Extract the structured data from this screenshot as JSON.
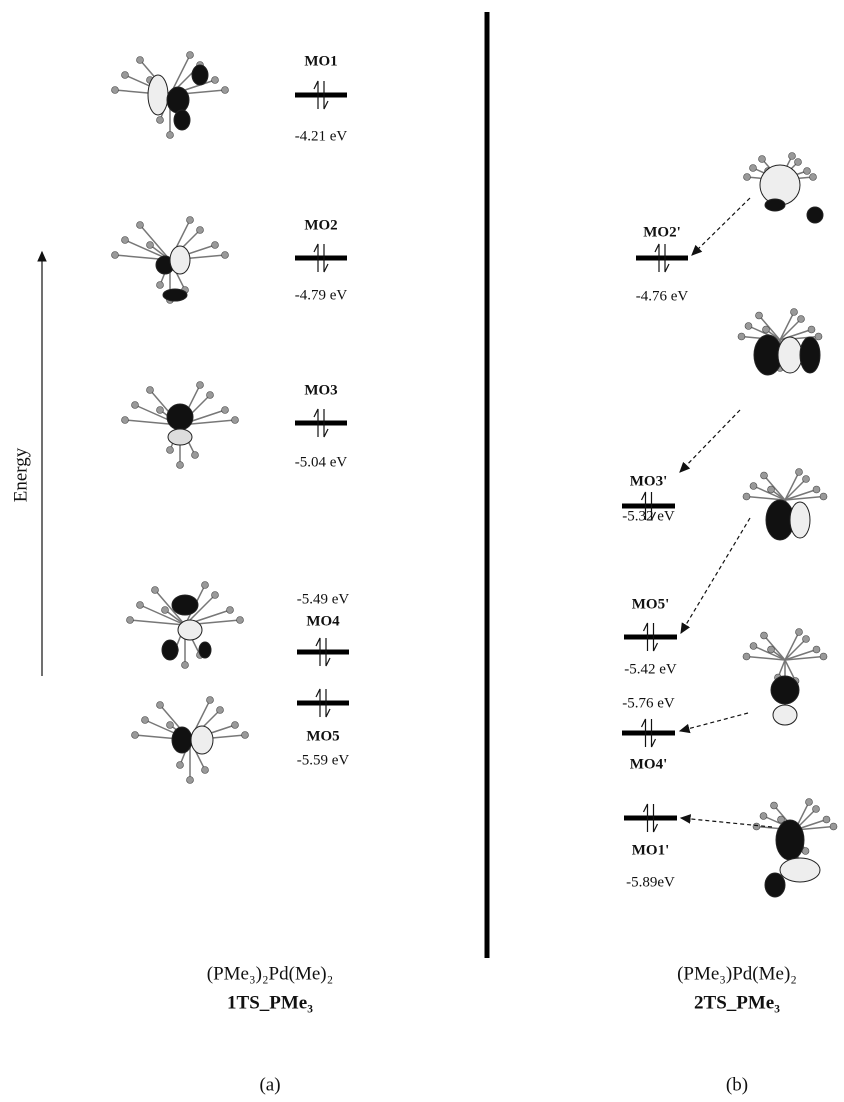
{
  "axis_label": "Energy",
  "panel_a": {
    "levels": [
      {
        "label": "MO1",
        "energy": "-4.21 eV"
      },
      {
        "label": "MO2",
        "energy": "-4.79 eV"
      },
      {
        "label": "MO3",
        "energy": "-5.04 eV"
      },
      {
        "label": "MO4",
        "energy": "-5.49 eV"
      },
      {
        "label": "MO5",
        "energy": "-5.59 eV"
      }
    ],
    "formula": "(PMe₃)₂Pd(Me)₂",
    "name": "1TS_PMe₃",
    "caption": "(a)"
  },
  "panel_b": {
    "levels": [
      {
        "label": "MO2'",
        "energy": "-4.76 eV"
      },
      {
        "label": "MO3'",
        "energy": "-5.32 eV"
      },
      {
        "label": "MO5'",
        "energy": "-5.42 eV"
      },
      {
        "label": "MO4'",
        "energy": "-5.76 eV"
      },
      {
        "label": "MO1'",
        "energy": "-5.89eV"
      }
    ],
    "formula": "(PMe₃)Pd(Me)₂",
    "name": "2TS_PMe₃",
    "caption": "(b)"
  }
}
